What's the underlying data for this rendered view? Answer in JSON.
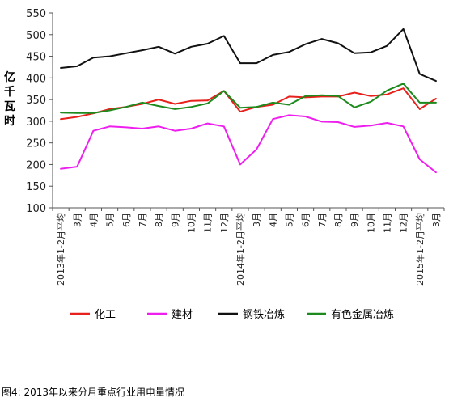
{
  "chart_data": {
    "type": "line",
    "ylabel": "亿千瓦时",
    "ylim": [
      100,
      550
    ],
    "yticks": [
      100,
      150,
      200,
      250,
      300,
      350,
      400,
      450,
      500,
      550
    ],
    "grid": false,
    "legend_position": "bottom",
    "categories": [
      "2013年1-2月平均",
      "3月",
      "4月",
      "5月",
      "6月",
      "7月",
      "8月",
      "9月",
      "10月",
      "11月",
      "12月",
      "2014年1-2月平均",
      "3月",
      "4月",
      "5月",
      "6月",
      "7月",
      "8月",
      "9月",
      "10月",
      "11月",
      "12月",
      "2015年1-2月平均",
      "3月"
    ],
    "series": [
      {
        "name": "化工",
        "color": "#e8211c",
        "values": [
          305,
          310,
          318,
          328,
          333,
          340,
          350,
          340,
          347,
          348,
          370,
          322,
          333,
          338,
          357,
          355,
          357,
          357,
          366,
          358,
          362,
          376,
          328,
          352
        ]
      },
      {
        "name": "建材",
        "color": "#ee1fee",
        "values": [
          190,
          195,
          278,
          288,
          286,
          283,
          288,
          278,
          283,
          295,
          288,
          200,
          235,
          305,
          314,
          311,
          299,
          298,
          287,
          290,
          296,
          288,
          212,
          182
        ]
      },
      {
        "name": "钢铁冶炼",
        "color": "#111111",
        "values": [
          423,
          427,
          447,
          450,
          457,
          464,
          472,
          456,
          472,
          479,
          497,
          434,
          434,
          453,
          460,
          478,
          490,
          480,
          457,
          459,
          474,
          513,
          409,
          393
        ]
      },
      {
        "name": "有色金属冶炼",
        "color": "#1c8a1c",
        "values": [
          320,
          319,
          319,
          325,
          333,
          343,
          335,
          328,
          333,
          341,
          370,
          331,
          333,
          343,
          338,
          358,
          360,
          358,
          332,
          345,
          371,
          387,
          343,
          343
        ]
      }
    ]
  },
  "caption": "图4: 2013年以来分月重点行业用电量情况"
}
